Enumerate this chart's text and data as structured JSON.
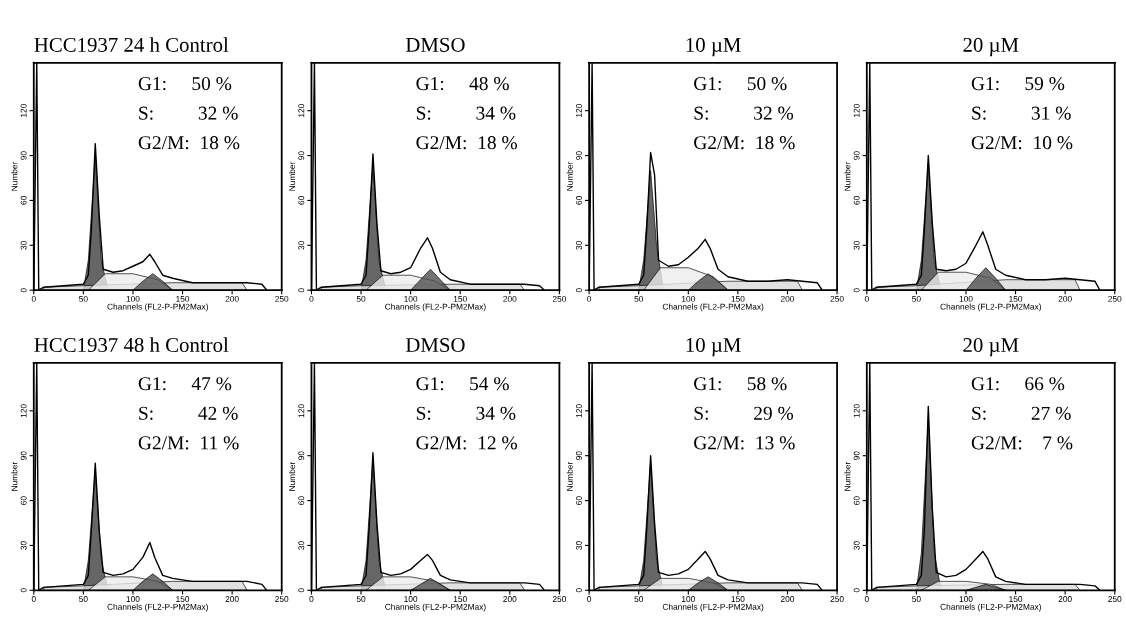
{
  "chart_data": [
    {
      "type": "line",
      "title": "HCC1937 24 h Control",
      "xlabel": "Channels (FL2-P-PM2Max)",
      "ylabel": "Number",
      "xlim": [
        0,
        250
      ],
      "ylim": [
        0,
        152
      ],
      "xticks": [
        0,
        50,
        100,
        150,
        200,
        250
      ],
      "yticks": [
        0,
        30,
        60,
        90,
        120
      ],
      "grid": false,
      "annotations": [
        "G1:     50 %",
        "S:         32 %",
        "G2/M:  18 %"
      ],
      "series": [
        {
          "type": "area",
          "color": "#d9d9d9",
          "x": [
            10,
            50,
            140,
            210,
            215
          ],
          "values": [
            2,
            3,
            5,
            5,
            0
          ]
        },
        {
          "type": "area",
          "color": "#ececec",
          "x": [
            55,
            72,
            100,
            125,
            140
          ],
          "values": [
            0,
            11,
            11,
            7,
            0
          ]
        },
        {
          "type": "area",
          "color": "#404040",
          "x": [
            50,
            55,
            62,
            68,
            75
          ],
          "values": [
            0,
            20,
            90,
            20,
            0
          ]
        },
        {
          "type": "area",
          "color": "#505050",
          "x": [
            100,
            110,
            120,
            130,
            140
          ],
          "values": [
            0,
            6,
            11,
            6,
            0
          ]
        },
        {
          "color": "#000000",
          "x": [
            0,
            3,
            5,
            10,
            30,
            50,
            55,
            58,
            62,
            66,
            70,
            80,
            90,
            100,
            110,
            117,
            122,
            130,
            140,
            160,
            180,
            200,
            215,
            230,
            235
          ],
          "values": [
            0,
            152,
            0,
            2,
            3,
            4,
            10,
            40,
            98,
            50,
            14,
            12,
            13,
            16,
            19,
            24,
            19,
            10,
            8,
            5,
            5,
            5,
            5,
            4,
            0
          ]
        }
      ]
    },
    {
      "type": "line",
      "title": "DMSO",
      "xlabel": "Channels (FL2-P-PM2Max)",
      "ylabel": "Number",
      "xlim": [
        0,
        250
      ],
      "ylim": [
        0,
        152
      ],
      "xticks": [
        0,
        50,
        100,
        150,
        200,
        250
      ],
      "yticks": [
        0,
        30,
        60,
        90,
        120
      ],
      "grid": false,
      "annotations": [
        "G1:     48 %",
        "S:         34 %",
        "G2/M:  18 %"
      ],
      "series": [
        {
          "type": "area",
          "color": "#d9d9d9",
          "x": [
            10,
            50,
            140,
            210,
            215
          ],
          "values": [
            2,
            3,
            4,
            4,
            0
          ]
        },
        {
          "type": "area",
          "color": "#ececec",
          "x": [
            55,
            72,
            100,
            125,
            140
          ],
          "values": [
            0,
            10,
            10,
            6,
            0
          ]
        },
        {
          "type": "area",
          "color": "#404040",
          "x": [
            50,
            55,
            62,
            68,
            75
          ],
          "values": [
            0,
            20,
            85,
            20,
            0
          ]
        },
        {
          "type": "area",
          "color": "#505050",
          "x": [
            100,
            110,
            120,
            130,
            140
          ],
          "values": [
            0,
            7,
            14,
            7,
            0
          ]
        },
        {
          "color": "#000000",
          "x": [
            0,
            3,
            5,
            10,
            30,
            50,
            55,
            58,
            62,
            66,
            70,
            80,
            90,
            100,
            110,
            117,
            122,
            130,
            140,
            160,
            180,
            200,
            215,
            230,
            235
          ],
          "values": [
            0,
            152,
            0,
            2,
            3,
            4,
            10,
            40,
            91,
            45,
            13,
            11,
            12,
            15,
            28,
            35,
            28,
            12,
            7,
            4,
            4,
            4,
            4,
            3,
            0
          ]
        }
      ]
    },
    {
      "type": "line",
      "title": "10 µM",
      "xlabel": "Channels (FL2-P-PM2Max)",
      "ylabel": "Number",
      "xlim": [
        0,
        250
      ],
      "ylim": [
        0,
        152
      ],
      "xticks": [
        0,
        50,
        100,
        150,
        200,
        250
      ],
      "yticks": [
        0,
        30,
        60,
        90,
        120
      ],
      "grid": false,
      "annotations": [
        "G1:     50 %",
        "S:         32 %",
        "G2/M:  18 %"
      ],
      "series": [
        {
          "type": "area",
          "color": "#d9d9d9",
          "x": [
            10,
            50,
            140,
            210,
            215
          ],
          "values": [
            2,
            3,
            6,
            6,
            0
          ]
        },
        {
          "type": "area",
          "color": "#ececec",
          "x": [
            55,
            72,
            100,
            125,
            140
          ],
          "values": [
            0,
            15,
            15,
            9,
            0
          ]
        },
        {
          "type": "area",
          "color": "#404040",
          "x": [
            50,
            55,
            62,
            68,
            75
          ],
          "values": [
            0,
            20,
            80,
            30,
            0
          ]
        },
        {
          "type": "area",
          "color": "#505050",
          "x": [
            100,
            110,
            120,
            130,
            140
          ],
          "values": [
            0,
            6,
            11,
            6,
            0
          ]
        },
        {
          "color": "#000000",
          "x": [
            0,
            3,
            5,
            10,
            30,
            50,
            55,
            58,
            62,
            66,
            70,
            80,
            90,
            100,
            110,
            117,
            122,
            130,
            140,
            160,
            180,
            200,
            215,
            230,
            235
          ],
          "values": [
            0,
            152,
            0,
            2,
            3,
            4,
            10,
            40,
            92,
            77,
            20,
            16,
            17,
            22,
            28,
            34,
            28,
            14,
            9,
            6,
            6,
            7,
            6,
            5,
            0
          ]
        }
      ]
    },
    {
      "type": "line",
      "title": "20 µM",
      "xlabel": "Channels (FL2-P-PM2Max)",
      "ylabel": "Number",
      "xlim": [
        0,
        250
      ],
      "ylim": [
        0,
        152
      ],
      "xticks": [
        0,
        50,
        100,
        150,
        200,
        250
      ],
      "yticks": [
        0,
        30,
        60,
        90,
        120
      ],
      "grid": false,
      "annotations": [
        "G1:     59 %",
        "S:         31 %",
        "G2/M:  10 %"
      ],
      "series": [
        {
          "type": "area",
          "color": "#d9d9d9",
          "x": [
            10,
            50,
            140,
            210,
            215
          ],
          "values": [
            2,
            3,
            7,
            7,
            0
          ]
        },
        {
          "type": "area",
          "color": "#ececec",
          "x": [
            55,
            72,
            100,
            125,
            140
          ],
          "values": [
            0,
            12,
            12,
            8,
            0
          ]
        },
        {
          "type": "area",
          "color": "#404040",
          "x": [
            50,
            55,
            62,
            68,
            75
          ],
          "values": [
            0,
            20,
            85,
            20,
            0
          ]
        },
        {
          "type": "area",
          "color": "#505050",
          "x": [
            100,
            110,
            120,
            130,
            140
          ],
          "values": [
            0,
            8,
            15,
            8,
            0
          ]
        },
        {
          "color": "#000000",
          "x": [
            0,
            3,
            5,
            10,
            30,
            50,
            55,
            58,
            62,
            66,
            70,
            80,
            90,
            100,
            110,
            117,
            122,
            130,
            140,
            160,
            180,
            200,
            215,
            230,
            235
          ],
          "values": [
            0,
            152,
            0,
            2,
            3,
            4,
            10,
            40,
            90,
            45,
            14,
            13,
            14,
            18,
            30,
            39,
            30,
            14,
            10,
            7,
            7,
            8,
            7,
            6,
            0
          ]
        }
      ]
    },
    {
      "type": "line",
      "title": "HCC1937 48 h Control",
      "xlabel": "Channels (FL2-P-PM2Max)",
      "ylabel": "Number",
      "xlim": [
        0,
        250
      ],
      "ylim": [
        0,
        152
      ],
      "xticks": [
        0,
        50,
        100,
        150,
        200,
        250
      ],
      "yticks": [
        0,
        30,
        60,
        90,
        120
      ],
      "grid": false,
      "annotations": [
        "G1:     47 %",
        "S:         42 %",
        "G2/M:  11 %"
      ],
      "series": [
        {
          "type": "area",
          "color": "#d9d9d9",
          "x": [
            10,
            50,
            140,
            210,
            215
          ],
          "values": [
            2,
            3,
            6,
            6,
            0
          ]
        },
        {
          "type": "area",
          "color": "#ececec",
          "x": [
            55,
            72,
            100,
            125,
            140
          ],
          "values": [
            0,
            9,
            9,
            6,
            0
          ]
        },
        {
          "type": "area",
          "color": "#404040",
          "x": [
            50,
            55,
            62,
            68,
            75
          ],
          "values": [
            0,
            20,
            80,
            20,
            0
          ]
        },
        {
          "type": "area",
          "color": "#505050",
          "x": [
            100,
            110,
            120,
            130,
            140
          ],
          "values": [
            0,
            6,
            11,
            6,
            0
          ]
        },
        {
          "color": "#000000",
          "x": [
            0,
            3,
            5,
            10,
            30,
            50,
            55,
            58,
            62,
            66,
            70,
            80,
            90,
            100,
            110,
            117,
            122,
            130,
            140,
            160,
            180,
            200,
            215,
            230,
            235
          ],
          "values": [
            0,
            152,
            0,
            2,
            3,
            4,
            10,
            40,
            85,
            40,
            12,
            10,
            11,
            14,
            22,
            32,
            22,
            10,
            8,
            6,
            6,
            6,
            6,
            4,
            0
          ]
        }
      ]
    },
    {
      "type": "line",
      "title": "DMSO",
      "xlabel": "Channels (FL2-P-PM2Max)",
      "ylabel": "Number",
      "xlim": [
        0,
        250
      ],
      "ylim": [
        0,
        152
      ],
      "xticks": [
        0,
        50,
        100,
        150,
        200,
        250
      ],
      "yticks": [
        0,
        30,
        60,
        90,
        120
      ],
      "grid": false,
      "annotations": [
        "G1:     54 %",
        "S:         34 %",
        "G2/M:  12 %"
      ],
      "series": [
        {
          "type": "area",
          "color": "#d9d9d9",
          "x": [
            10,
            50,
            140,
            210,
            215
          ],
          "values": [
            2,
            3,
            5,
            5,
            0
          ]
        },
        {
          "type": "area",
          "color": "#ececec",
          "x": [
            55,
            72,
            100,
            125,
            140
          ],
          "values": [
            0,
            9,
            9,
            6,
            0
          ]
        },
        {
          "type": "area",
          "color": "#404040",
          "x": [
            50,
            55,
            62,
            68,
            75
          ],
          "values": [
            0,
            20,
            87,
            20,
            0
          ]
        },
        {
          "type": "area",
          "color": "#505050",
          "x": [
            100,
            110,
            120,
            130,
            140
          ],
          "values": [
            0,
            4,
            8,
            4,
            0
          ]
        },
        {
          "color": "#000000",
          "x": [
            0,
            3,
            5,
            10,
            30,
            50,
            55,
            58,
            62,
            66,
            70,
            80,
            90,
            100,
            110,
            117,
            122,
            130,
            140,
            160,
            180,
            200,
            215,
            230,
            235
          ],
          "values": [
            0,
            152,
            0,
            2,
            3,
            4,
            10,
            40,
            92,
            45,
            12,
            10,
            11,
            14,
            20,
            24,
            20,
            10,
            7,
            5,
            5,
            5,
            5,
            4,
            0
          ]
        }
      ]
    },
    {
      "type": "line",
      "title": "10 µM",
      "xlabel": "Channels (FL2-P-PM2Max)",
      "ylabel": "Number",
      "xlim": [
        0,
        250
      ],
      "ylim": [
        0,
        152
      ],
      "xticks": [
        0,
        50,
        100,
        150,
        200,
        250
      ],
      "yticks": [
        0,
        30,
        60,
        90,
        120
      ],
      "grid": false,
      "annotations": [
        "G1:     58 %",
        "S:         29 %",
        "G2/M:  13 %"
      ],
      "series": [
        {
          "type": "area",
          "color": "#d9d9d9",
          "x": [
            10,
            50,
            140,
            210,
            215
          ],
          "values": [
            2,
            3,
            5,
            5,
            0
          ]
        },
        {
          "type": "area",
          "color": "#ececec",
          "x": [
            55,
            72,
            100,
            125,
            140
          ],
          "values": [
            0,
            8,
            8,
            5,
            0
          ]
        },
        {
          "type": "area",
          "color": "#404040",
          "x": [
            50,
            55,
            62,
            68,
            75
          ],
          "values": [
            0,
            20,
            85,
            20,
            0
          ]
        },
        {
          "type": "area",
          "color": "#505050",
          "x": [
            100,
            110,
            120,
            130,
            140
          ],
          "values": [
            0,
            5,
            9,
            5,
            0
          ]
        },
        {
          "color": "#000000",
          "x": [
            0,
            3,
            5,
            10,
            30,
            50,
            55,
            58,
            62,
            66,
            70,
            80,
            90,
            100,
            110,
            117,
            122,
            130,
            140,
            160,
            180,
            200,
            215,
            230,
            235
          ],
          "values": [
            0,
            152,
            0,
            2,
            3,
            4,
            10,
            40,
            90,
            45,
            12,
            10,
            11,
            14,
            21,
            26,
            21,
            10,
            7,
            5,
            5,
            5,
            5,
            4,
            0
          ]
        }
      ]
    },
    {
      "type": "line",
      "title": "20 µM",
      "xlabel": "Channels (FL2-P-PM2Max)",
      "ylabel": "Number",
      "xlim": [
        0,
        250
      ],
      "ylim": [
        0,
        152
      ],
      "xticks": [
        0,
        50,
        100,
        150,
        200,
        250
      ],
      "yticks": [
        0,
        30,
        60,
        90,
        120
      ],
      "grid": false,
      "annotations": [
        "G1:     66 %",
        "S:         27 %",
        "G2/M:    7 %"
      ],
      "series": [
        {
          "type": "area",
          "color": "#d9d9d9",
          "x": [
            10,
            50,
            140,
            210,
            215
          ],
          "values": [
            2,
            3,
            4,
            4,
            0
          ]
        },
        {
          "type": "area",
          "color": "#ececec",
          "x": [
            55,
            72,
            100,
            125,
            140
          ],
          "values": [
            0,
            6,
            6,
            4,
            0
          ]
        },
        {
          "type": "area",
          "color": "#404040",
          "x": [
            50,
            55,
            62,
            68,
            75
          ],
          "values": [
            0,
            25,
            115,
            25,
            0
          ]
        },
        {
          "type": "area",
          "color": "#505050",
          "x": [
            100,
            110,
            120,
            130,
            140
          ],
          "values": [
            0,
            2,
            4,
            2,
            0
          ]
        },
        {
          "color": "#000000",
          "x": [
            0,
            3,
            5,
            10,
            30,
            50,
            55,
            58,
            62,
            66,
            70,
            80,
            90,
            100,
            110,
            117,
            122,
            130,
            140,
            160,
            180,
            200,
            215,
            230,
            235
          ],
          "values": [
            0,
            152,
            0,
            2,
            3,
            4,
            10,
            40,
            123,
            55,
            12,
            9,
            10,
            14,
            21,
            26,
            21,
            9,
            6,
            4,
            4,
            4,
            4,
            3,
            0
          ]
        }
      ]
    }
  ]
}
